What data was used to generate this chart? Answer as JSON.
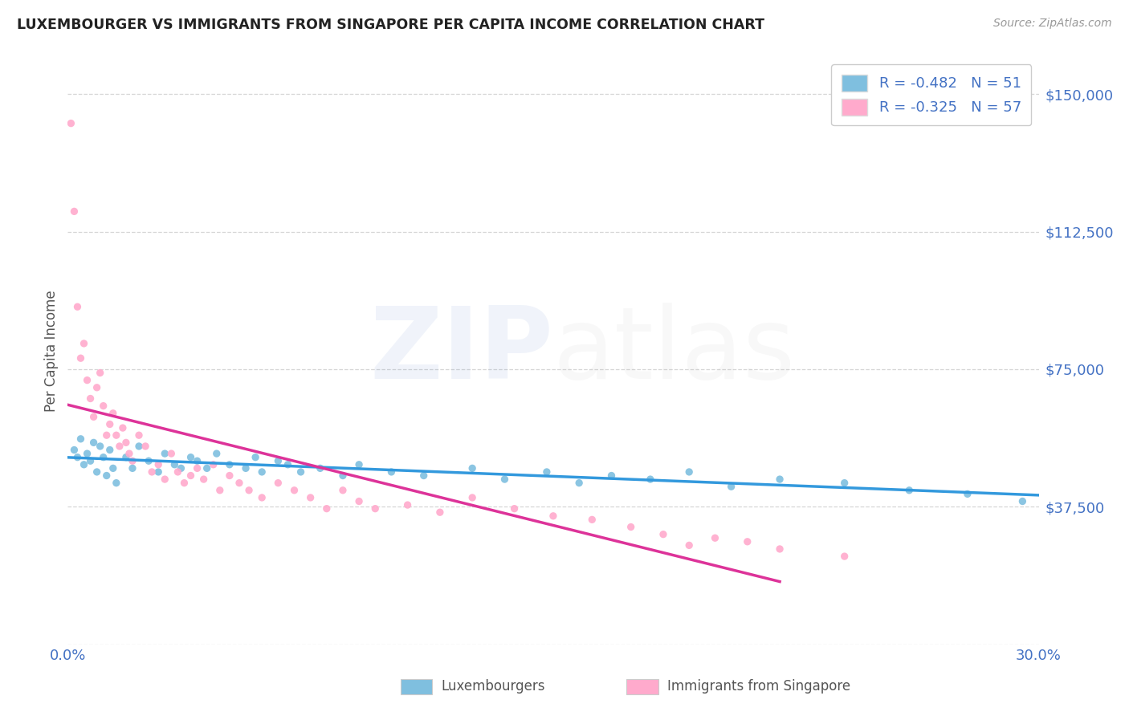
{
  "title": "LUXEMBOURGER VS IMMIGRANTS FROM SINGAPORE PER CAPITA INCOME CORRELATION CHART",
  "source": "Source: ZipAtlas.com",
  "ylabel": "Per Capita Income",
  "xlim": [
    0.0,
    0.3
  ],
  "ylim": [
    0,
    160000
  ],
  "yticks": [
    0,
    37500,
    75000,
    112500,
    150000
  ],
  "ytick_labels": [
    "",
    "$37,500",
    "$75,000",
    "$112,500",
    "$150,000"
  ],
  "xtick_positions": [
    0.0,
    0.05,
    0.1,
    0.15,
    0.2,
    0.25,
    0.3
  ],
  "xtick_labels": [
    "0.0%",
    "",
    "",
    "",
    "",
    "",
    "30.0%"
  ],
  "blue_R": -0.482,
  "blue_N": 51,
  "pink_R": -0.325,
  "pink_N": 57,
  "legend_label_blue": "Luxembourgers",
  "legend_label_pink": "Immigrants from Singapore",
  "blue_scatter_color": "#7fbfdf",
  "pink_scatter_color": "#ffaacc",
  "blue_line_color": "#3399dd",
  "pink_line_color": "#dd3399",
  "title_color": "#222222",
  "axis_color": "#555555",
  "tick_color": "#4472C4",
  "grid_color": "#cccccc",
  "blue_x": [
    0.002,
    0.003,
    0.004,
    0.005,
    0.006,
    0.007,
    0.008,
    0.009,
    0.01,
    0.011,
    0.012,
    0.013,
    0.014,
    0.015,
    0.018,
    0.02,
    0.022,
    0.025,
    0.028,
    0.03,
    0.033,
    0.035,
    0.038,
    0.04,
    0.043,
    0.046,
    0.05,
    0.055,
    0.058,
    0.06,
    0.065,
    0.068,
    0.072,
    0.078,
    0.085,
    0.09,
    0.1,
    0.11,
    0.125,
    0.135,
    0.148,
    0.158,
    0.168,
    0.18,
    0.192,
    0.205,
    0.22,
    0.24,
    0.26,
    0.278,
    0.295
  ],
  "blue_y": [
    53000,
    51000,
    56000,
    49000,
    52000,
    50000,
    55000,
    47000,
    54000,
    51000,
    46000,
    53000,
    48000,
    44000,
    51000,
    48000,
    54000,
    50000,
    47000,
    52000,
    49000,
    48000,
    51000,
    50000,
    48000,
    52000,
    49000,
    48000,
    51000,
    47000,
    50000,
    49000,
    47000,
    48000,
    46000,
    49000,
    47000,
    46000,
    48000,
    45000,
    47000,
    44000,
    46000,
    45000,
    47000,
    43000,
    45000,
    44000,
    42000,
    41000,
    39000
  ],
  "pink_x": [
    0.001,
    0.002,
    0.003,
    0.004,
    0.005,
    0.006,
    0.007,
    0.008,
    0.009,
    0.01,
    0.011,
    0.012,
    0.013,
    0.014,
    0.015,
    0.016,
    0.017,
    0.018,
    0.019,
    0.02,
    0.022,
    0.024,
    0.026,
    0.028,
    0.03,
    0.032,
    0.034,
    0.036,
    0.038,
    0.04,
    0.042,
    0.045,
    0.047,
    0.05,
    0.053,
    0.056,
    0.06,
    0.065,
    0.07,
    0.075,
    0.08,
    0.085,
    0.09,
    0.095,
    0.105,
    0.115,
    0.125,
    0.138,
    0.15,
    0.162,
    0.174,
    0.184,
    0.192,
    0.2,
    0.21,
    0.22,
    0.24
  ],
  "pink_y": [
    142000,
    118000,
    92000,
    78000,
    82000,
    72000,
    67000,
    62000,
    70000,
    74000,
    65000,
    57000,
    60000,
    63000,
    57000,
    54000,
    59000,
    55000,
    52000,
    50000,
    57000,
    54000,
    47000,
    49000,
    45000,
    52000,
    47000,
    44000,
    46000,
    48000,
    45000,
    49000,
    42000,
    46000,
    44000,
    42000,
    40000,
    44000,
    42000,
    40000,
    37000,
    42000,
    39000,
    37000,
    38000,
    36000,
    40000,
    37000,
    35000,
    34000,
    32000,
    30000,
    27000,
    29000,
    28000,
    26000,
    24000
  ]
}
